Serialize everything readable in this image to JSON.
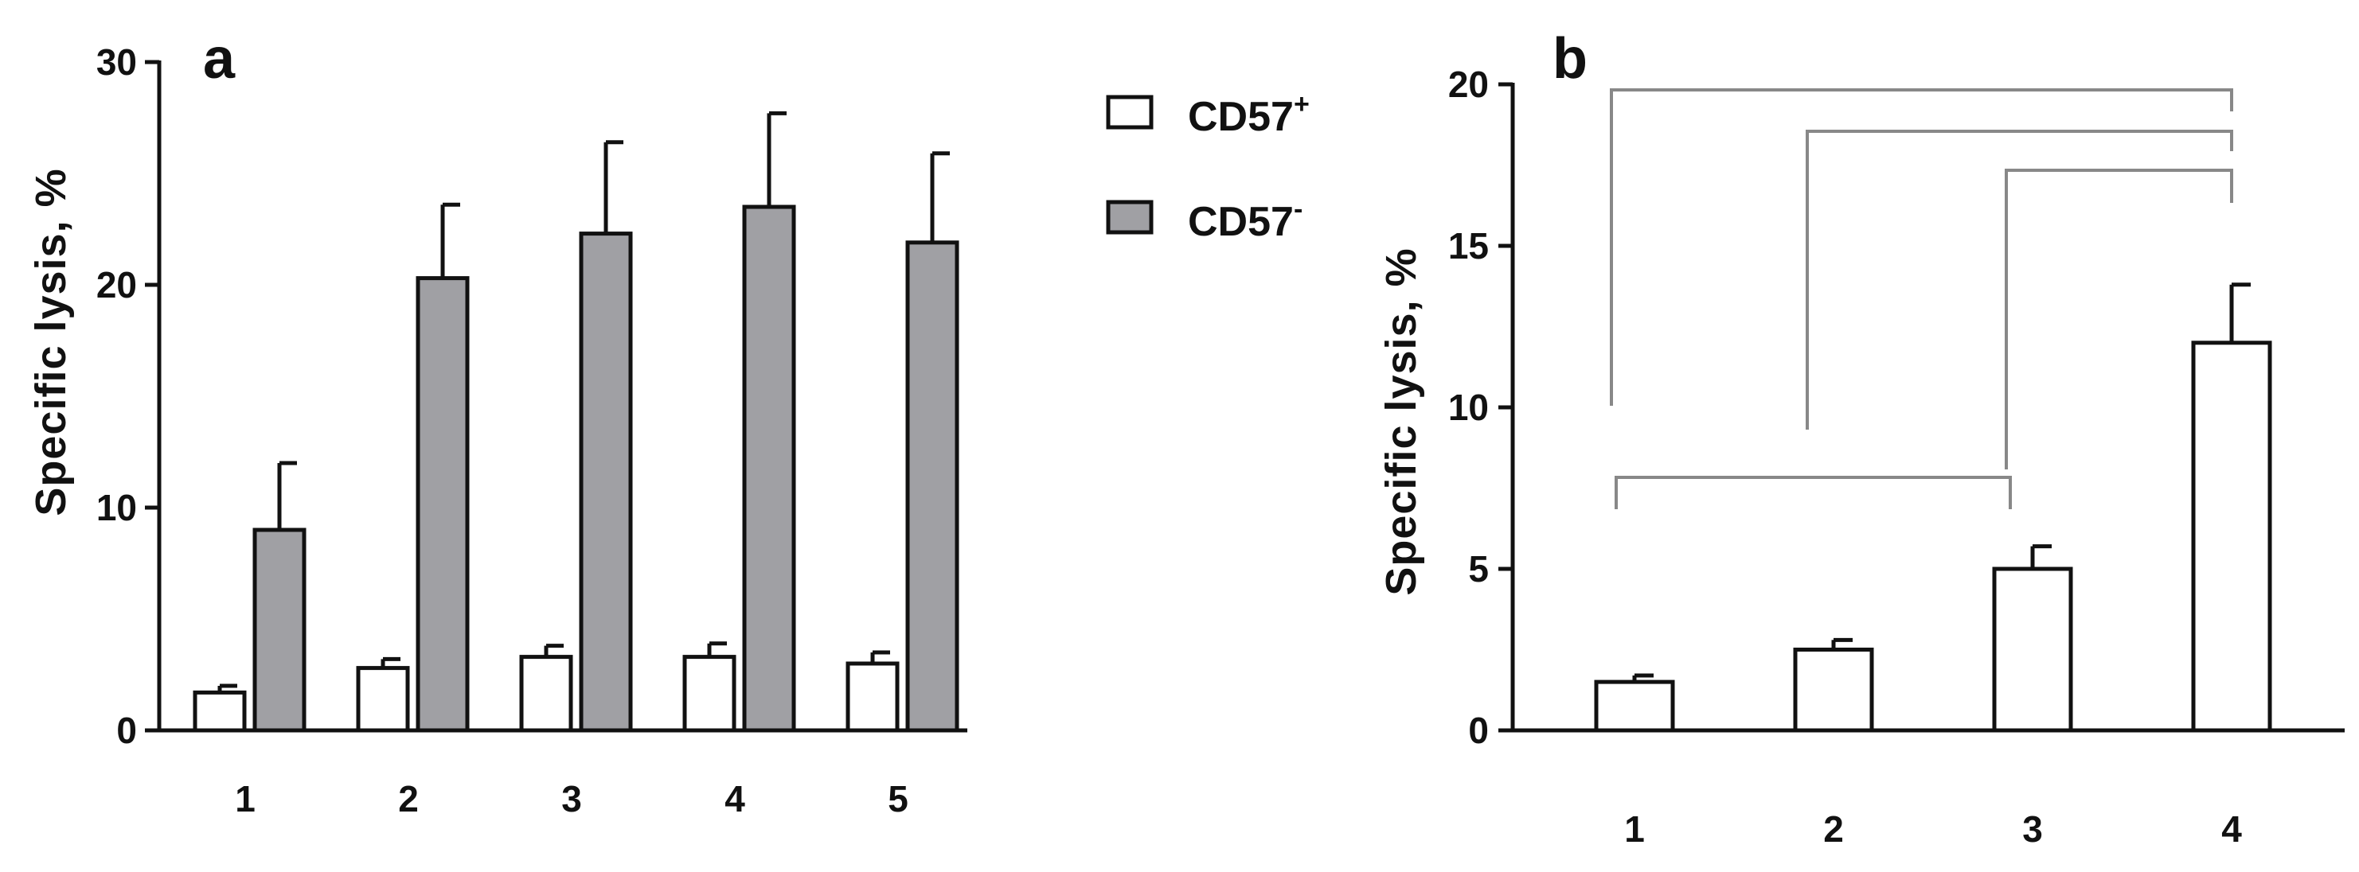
{
  "chart_data": [
    {
      "panel": "a",
      "type": "bar",
      "ylabel": "Specific lysis, %",
      "ylim": [
        0,
        30
      ],
      "yticks": [
        0,
        10,
        20,
        30
      ],
      "categories": [
        "1",
        "2",
        "3",
        "4",
        "5"
      ],
      "series": [
        {
          "name": "CD57+",
          "color": "#ffffff",
          "values": [
            1.7,
            2.8,
            3.3,
            3.3,
            3.0
          ],
          "errors": [
            0.3,
            0.4,
            0.5,
            0.6,
            0.5
          ]
        },
        {
          "name": "CD57-",
          "color": "#a0a0a4",
          "values": [
            9.0,
            20.3,
            22.3,
            23.5,
            21.9
          ],
          "errors": [
            3.0,
            3.3,
            4.1,
            4.2,
            4.0
          ]
        }
      ]
    },
    {
      "panel": "b",
      "type": "bar",
      "ylabel": "Specific lysis, %",
      "ylim": [
        0,
        20
      ],
      "yticks": [
        0,
        5,
        10,
        15,
        20
      ],
      "categories": [
        "1",
        "2",
        "3",
        "4"
      ],
      "series": [
        {
          "name": "",
          "color": "#ffffff",
          "values": [
            1.5,
            2.5,
            5.0,
            12.0
          ],
          "errors": [
            0.2,
            0.3,
            0.7,
            1.8
          ]
        }
      ],
      "significance": [
        [
          1,
          4
        ],
        [
          2,
          4
        ],
        [
          3,
          4
        ],
        [
          1,
          3
        ]
      ]
    }
  ],
  "legend": {
    "items": [
      {
        "base": "CD57",
        "sup": "+",
        "color": "#ffffff"
      },
      {
        "base": "CD57",
        "sup": "-",
        "color": "#a0a0a4"
      }
    ]
  }
}
